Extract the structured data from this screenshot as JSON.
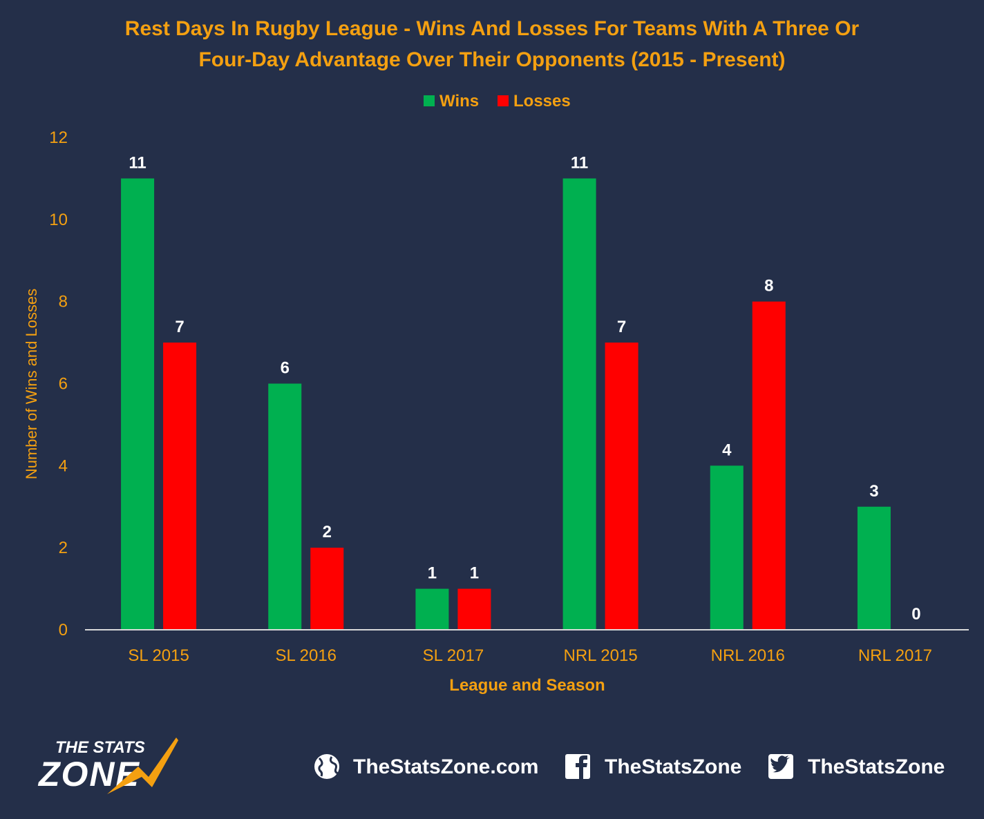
{
  "chart_data": {
    "type": "bar",
    "title_lines": [
      "Rest Days In Rugby League - Wins And Losses For Teams With A Three Or",
      "Four-Day Advantage Over Their Opponents (2015 - Present)"
    ],
    "xlabel": "League and Season",
    "ylabel": "Number of Wins and Losses",
    "categories": [
      "SL 2015",
      "SL 2016",
      "SL 2017",
      "NRL 2015",
      "NRL 2016",
      "NRL 2017"
    ],
    "series": [
      {
        "name": "Wins",
        "color": "#00b050",
        "values": [
          11,
          6,
          1,
          11,
          4,
          3
        ]
      },
      {
        "name": "Losses",
        "color": "#ff0000",
        "values": [
          7,
          2,
          1,
          7,
          8,
          0
        ]
      }
    ],
    "ylim": [
      0,
      12
    ],
    "yticks": [
      0,
      2,
      4,
      6,
      8,
      10,
      12
    ],
    "grid": false,
    "legend_position": "top-center",
    "accent_color": "#f4a011",
    "background_color": "#242f49",
    "data_label_color": "#ffffff"
  },
  "footer": {
    "logo_line1": "THE STATS",
    "logo_line2": "ZONE",
    "website": "TheStatsZone.com",
    "facebook": "TheStatsZone",
    "twitter": "TheStatsZone",
    "icons": [
      "globe-icon",
      "facebook-icon",
      "twitter-icon"
    ]
  }
}
